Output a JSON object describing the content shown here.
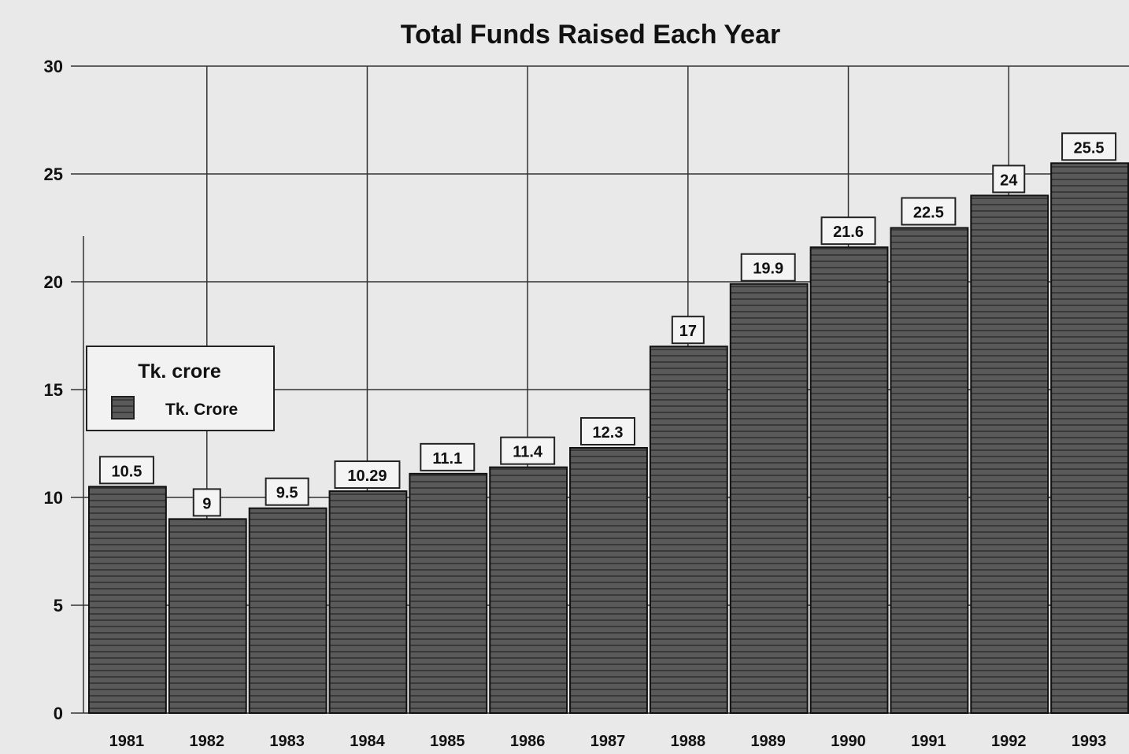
{
  "chart_data": {
    "type": "bar",
    "title": "Total Funds Raised Each Year",
    "xlabel": "",
    "ylabel": "",
    "categories": [
      "1981",
      "1982",
      "1983",
      "1984",
      "1985",
      "1986",
      "1987",
      "1988",
      "1989",
      "1990",
      "1991",
      "1992",
      "1993"
    ],
    "series": [
      {
        "name": "Tk. Crore",
        "values": [
          10.5,
          9,
          9.5,
          10.29,
          11.1,
          11.4,
          12.3,
          17,
          19.9,
          21.6,
          22.5,
          24,
          25.5
        ]
      }
    ],
    "data_labels": [
      "10.5",
      "9",
      "9.5",
      "10.29",
      "11.1",
      "11.4",
      "12.3",
      "17",
      "19.9",
      "21.6",
      "22.5",
      "24",
      "25.5"
    ],
    "ylim": [
      0,
      30
    ],
    "yticks": [
      "0",
      "5",
      "10",
      "15",
      "20",
      "25",
      "30"
    ],
    "grid": true,
    "legend": {
      "title": "Tk. crore",
      "placement": "left-middle"
    },
    "colors": {
      "bar_fill": "#555555",
      "bar_stroke": "#111111",
      "grid": "#333333",
      "background": "#e9e9e9",
      "label_box": "#f4f4f4"
    }
  }
}
